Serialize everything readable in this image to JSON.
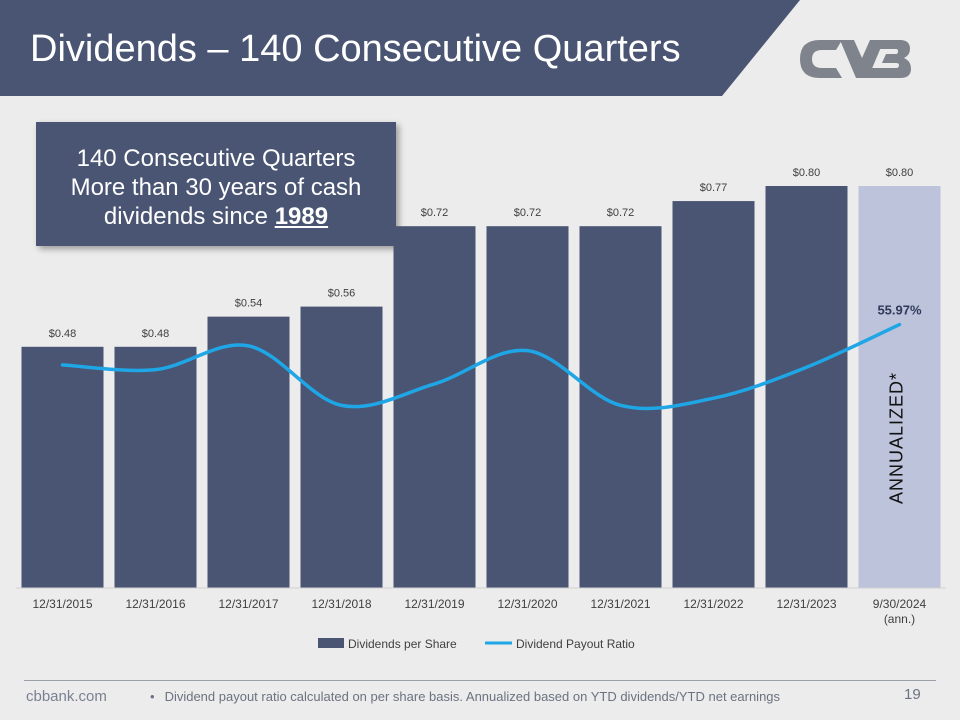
{
  "header": {
    "title": "Dividends – 140 Consecutive Quarters",
    "logo_icon": "cvb-logo-icon"
  },
  "callout": {
    "line1": "140 Consecutive Quarters",
    "line2": "More than 30 years of cash",
    "line3_prefix": "dividends since ",
    "line3_year": "1989"
  },
  "chart_data": {
    "type": "bar",
    "categories": [
      "12/31/2015",
      "12/31/2016",
      "12/31/2017",
      "12/31/2018",
      "12/31/2019",
      "12/31/2020",
      "12/31/2021",
      "12/31/2022",
      "12/31/2023",
      "9/30/2024"
    ],
    "category_sublabels": [
      "",
      "",
      "",
      "",
      "",
      "",
      "",
      "",
      "",
      "(ann.)"
    ],
    "series": [
      {
        "name": "Dividends per Share",
        "kind": "bar",
        "values": [
          0.48,
          0.48,
          0.54,
          0.56,
          0.72,
          0.72,
          0.72,
          0.77,
          0.8,
          0.8
        ],
        "labels": [
          "$0.48",
          "$0.48",
          "$0.54",
          "$0.56",
          "$0.72",
          "$0.72",
          "$0.72",
          "$0.77",
          "$0.80",
          "$0.80"
        ],
        "color": "#4a5573",
        "highlight_color": "#bcc3da",
        "highlight_index": 9
      },
      {
        "name": "Dividend Payout Ratio",
        "kind": "line",
        "values": [
          47.5,
          46.5,
          51.5,
          39.0,
          43.5,
          50.5,
          39.0,
          40.5,
          47.0,
          55.97
        ],
        "labels": [
          "",
          "",
          "",
          "",
          "",
          "",
          "",
          "",
          "",
          "55.97%"
        ],
        "color": "#1ea6e6"
      }
    ],
    "bar_ylim": [
      0,
      0.8
    ],
    "line_ylim": [
      0,
      100
    ],
    "annotation": "ANNUALIZED*",
    "legend_position": "bottom",
    "grid": false
  },
  "footer": {
    "site": "cbbank.com",
    "bullet": "•",
    "note": "Dividend payout ratio calculated on per share basis. Annualized based on YTD dividends/YTD net earnings",
    "page_number": "19"
  }
}
